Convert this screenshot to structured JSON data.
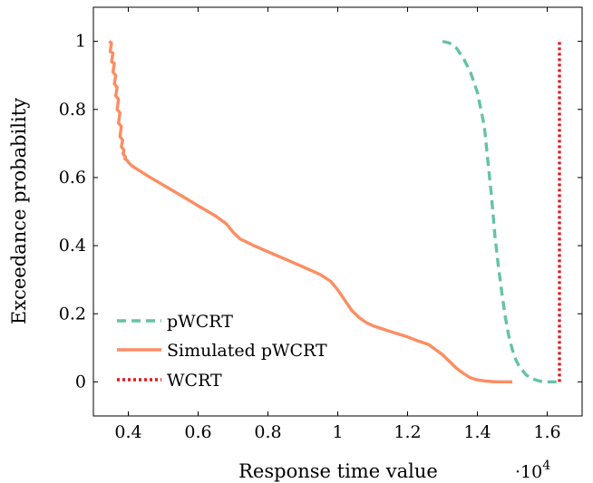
{
  "chart_data": {
    "type": "line",
    "title": "",
    "xlabel": "Response time value",
    "ylabel": "Exceedance probability",
    "x_multiplier": "·10",
    "x_multiplier_exp": "4",
    "xlim": [
      0.3,
      1.7
    ],
    "ylim": [
      -0.1,
      1.1
    ],
    "x_ticks": [
      0.4,
      0.6,
      0.8,
      1.0,
      1.2,
      1.4,
      1.6
    ],
    "x_tick_labels": [
      "0.4",
      "0.6",
      "0.8",
      "1",
      "1.2",
      "1.4",
      "1.6"
    ],
    "y_ticks": [
      0,
      0.2,
      0.4,
      0.6,
      0.8,
      1.0
    ],
    "y_tick_labels": [
      "0",
      "0.2",
      "0.4",
      "0.6",
      "0.8",
      "1"
    ],
    "grid": false,
    "legend_position": "bottom-left",
    "series": [
      {
        "name": "pWCRT",
        "color": "#66c2a5",
        "style": "dashed",
        "x": [
          1.3,
          1.32,
          1.34,
          1.36,
          1.38,
          1.4,
          1.42,
          1.43,
          1.44,
          1.45,
          1.46,
          1.47,
          1.48,
          1.49,
          1.5,
          1.51,
          1.52,
          1.54,
          1.56,
          1.58,
          1.6,
          1.62,
          1.635
        ],
        "y": [
          1.0,
          0.995,
          0.98,
          0.95,
          0.91,
          0.85,
          0.75,
          0.65,
          0.55,
          0.43,
          0.34,
          0.26,
          0.19,
          0.135,
          0.095,
          0.065,
          0.045,
          0.02,
          0.008,
          0.002,
          0.0,
          0.0,
          0.0
        ]
      },
      {
        "name": "Simulated pWCRT",
        "color": "#fc8d62",
        "style": "solid",
        "x": [
          0.345,
          0.352,
          0.348,
          0.356,
          0.352,
          0.36,
          0.356,
          0.364,
          0.36,
          0.368,
          0.364,
          0.372,
          0.368,
          0.376,
          0.372,
          0.38,
          0.376,
          0.384,
          0.38,
          0.388,
          0.385,
          0.392,
          0.39,
          0.397,
          0.4,
          0.405,
          0.41,
          0.42,
          0.44,
          0.46,
          0.5,
          0.55,
          0.6,
          0.65,
          0.68,
          0.7,
          0.72,
          0.74,
          0.76,
          0.8,
          0.85,
          0.9,
          0.95,
          0.98,
          1.0,
          1.02,
          1.04,
          1.06,
          1.08,
          1.1,
          1.15,
          1.2,
          1.23,
          1.26,
          1.28,
          1.3,
          1.32,
          1.34,
          1.36,
          1.38,
          1.4,
          1.42,
          1.44,
          1.46,
          1.48,
          1.5
        ],
        "y": [
          1.0,
          0.995,
          0.97,
          0.965,
          0.94,
          0.935,
          0.91,
          0.9,
          0.875,
          0.865,
          0.84,
          0.83,
          0.8,
          0.79,
          0.76,
          0.75,
          0.72,
          0.71,
          0.69,
          0.68,
          0.67,
          0.66,
          0.655,
          0.65,
          0.645,
          0.64,
          0.635,
          0.628,
          0.615,
          0.602,
          0.578,
          0.548,
          0.517,
          0.487,
          0.465,
          0.44,
          0.42,
          0.41,
          0.4,
          0.382,
          0.36,
          0.338,
          0.315,
          0.295,
          0.27,
          0.24,
          0.21,
          0.19,
          0.175,
          0.165,
          0.148,
          0.132,
          0.12,
          0.11,
          0.095,
          0.08,
          0.06,
          0.04,
          0.025,
          0.012,
          0.006,
          0.003,
          0.001,
          0.0,
          0.0,
          0.0
        ]
      },
      {
        "name": "WCRT",
        "color": "#e41a1c",
        "style": "dotted",
        "x": [
          1.635,
          1.635
        ],
        "y": [
          0.0,
          1.0
        ]
      }
    ]
  }
}
